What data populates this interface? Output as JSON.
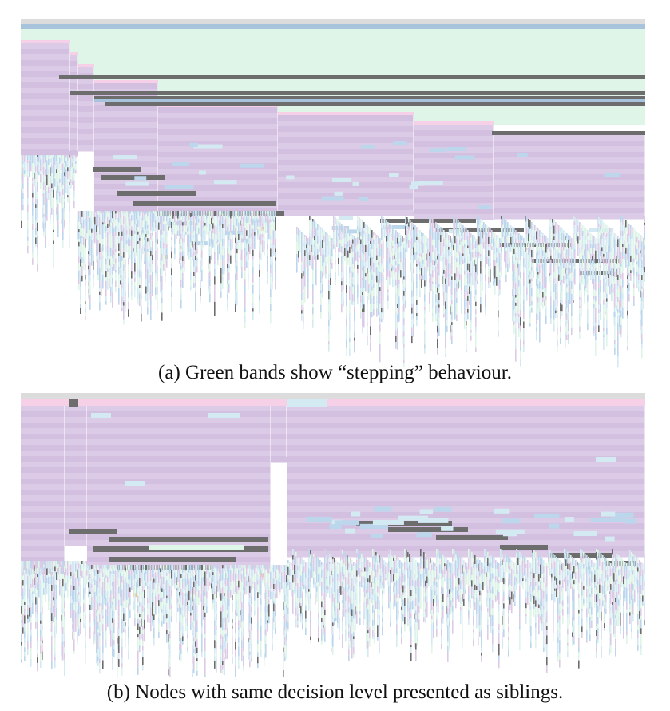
{
  "figure": {
    "panels": [
      {
        "id": "a",
        "caption": "(a) Green bands show “stepping” behaviour."
      },
      {
        "id": "b",
        "caption": "(b) Nodes with same decision level presented as siblings."
      }
    ]
  },
  "palette": {
    "lavender": "#dccbe6",
    "lavender_dark": "#d3c0e0",
    "mint": "#dff5e7",
    "pink": "#f5d0e6",
    "grey_bar": "#6d6d6d",
    "light_blue": "#bcd6ec",
    "pale_blue": "#d4eaf2",
    "header_grey": "#dcdcdc",
    "header_blue": "#a8c4dc",
    "orange": "#f2c27a"
  }
}
